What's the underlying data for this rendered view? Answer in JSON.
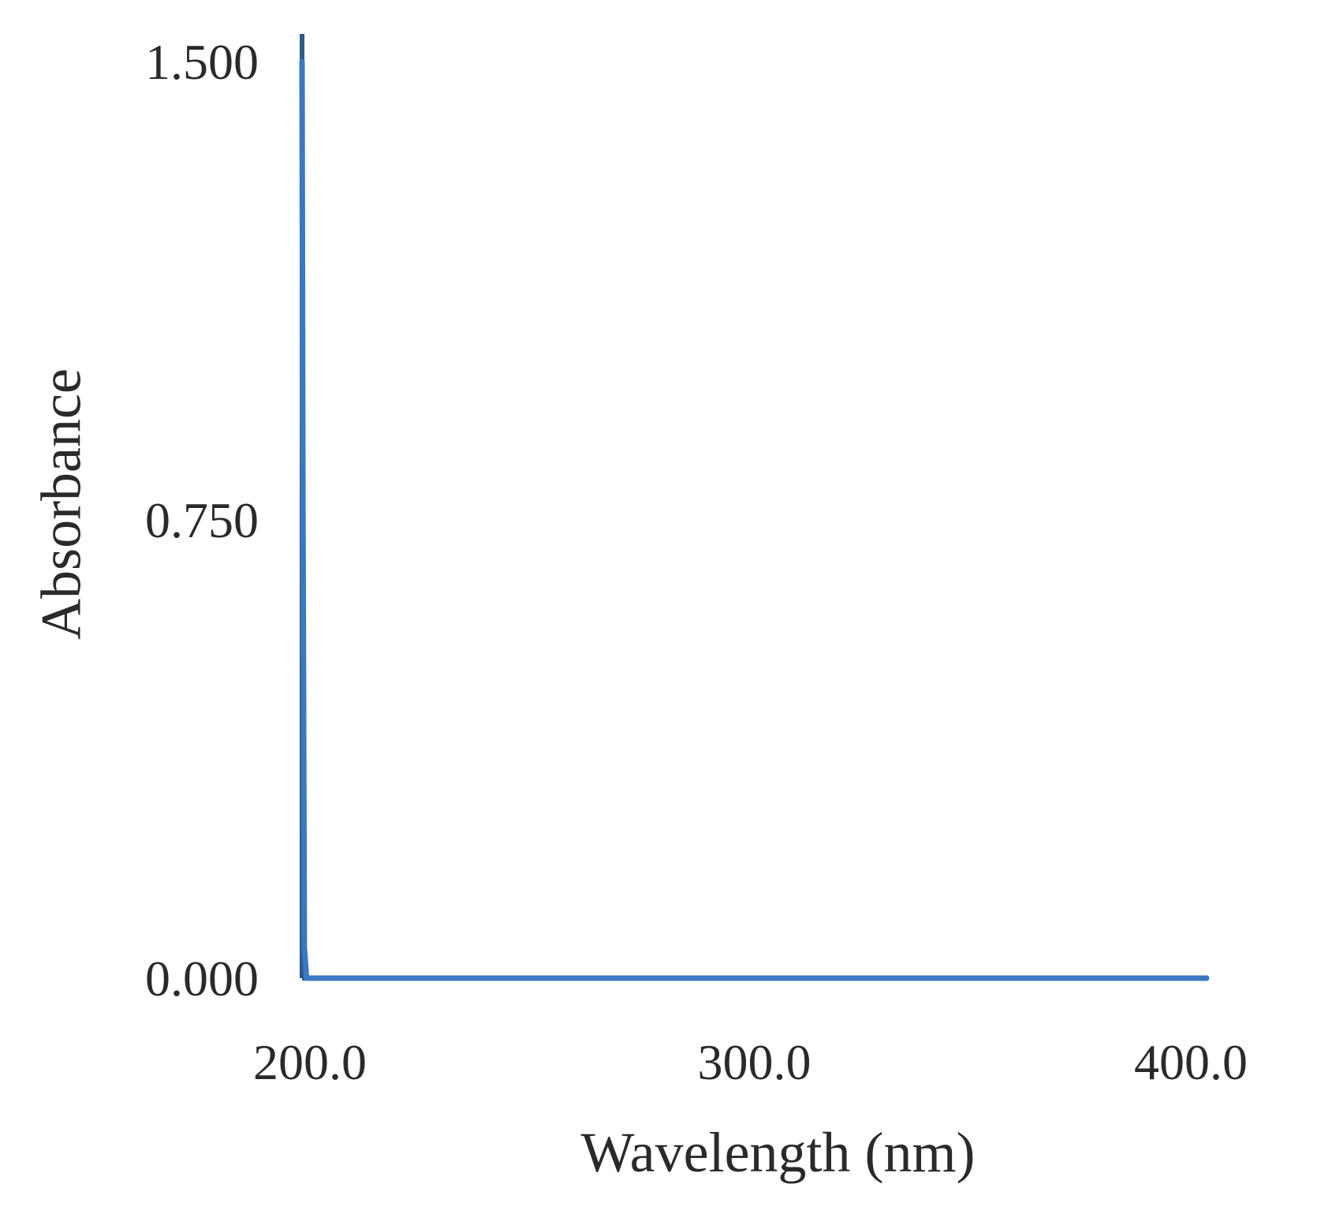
{
  "chart_data": {
    "type": "line",
    "title": "",
    "xlabel": "Wavelength (nm)",
    "ylabel": "Absorbance",
    "xlim": [
      200.0,
      400.0
    ],
    "ylim": [
      0.0,
      1.5
    ],
    "x_ticks": [
      "200.0",
      "300.0",
      "400.0"
    ],
    "y_ticks": [
      "0.000",
      "0.750",
      "1.500"
    ],
    "grid": false,
    "legend": "none",
    "series": [
      {
        "color": "#3a78c2",
        "x": [
          200.0,
          200.2,
          200.5,
          201.0,
          205.0,
          250.0,
          300.0,
          350.0,
          400.0
        ],
        "y": [
          1.5,
          0.8,
          0.05,
          0.0,
          0.0,
          0.0,
          0.0,
          0.0,
          0.0
        ]
      }
    ]
  }
}
